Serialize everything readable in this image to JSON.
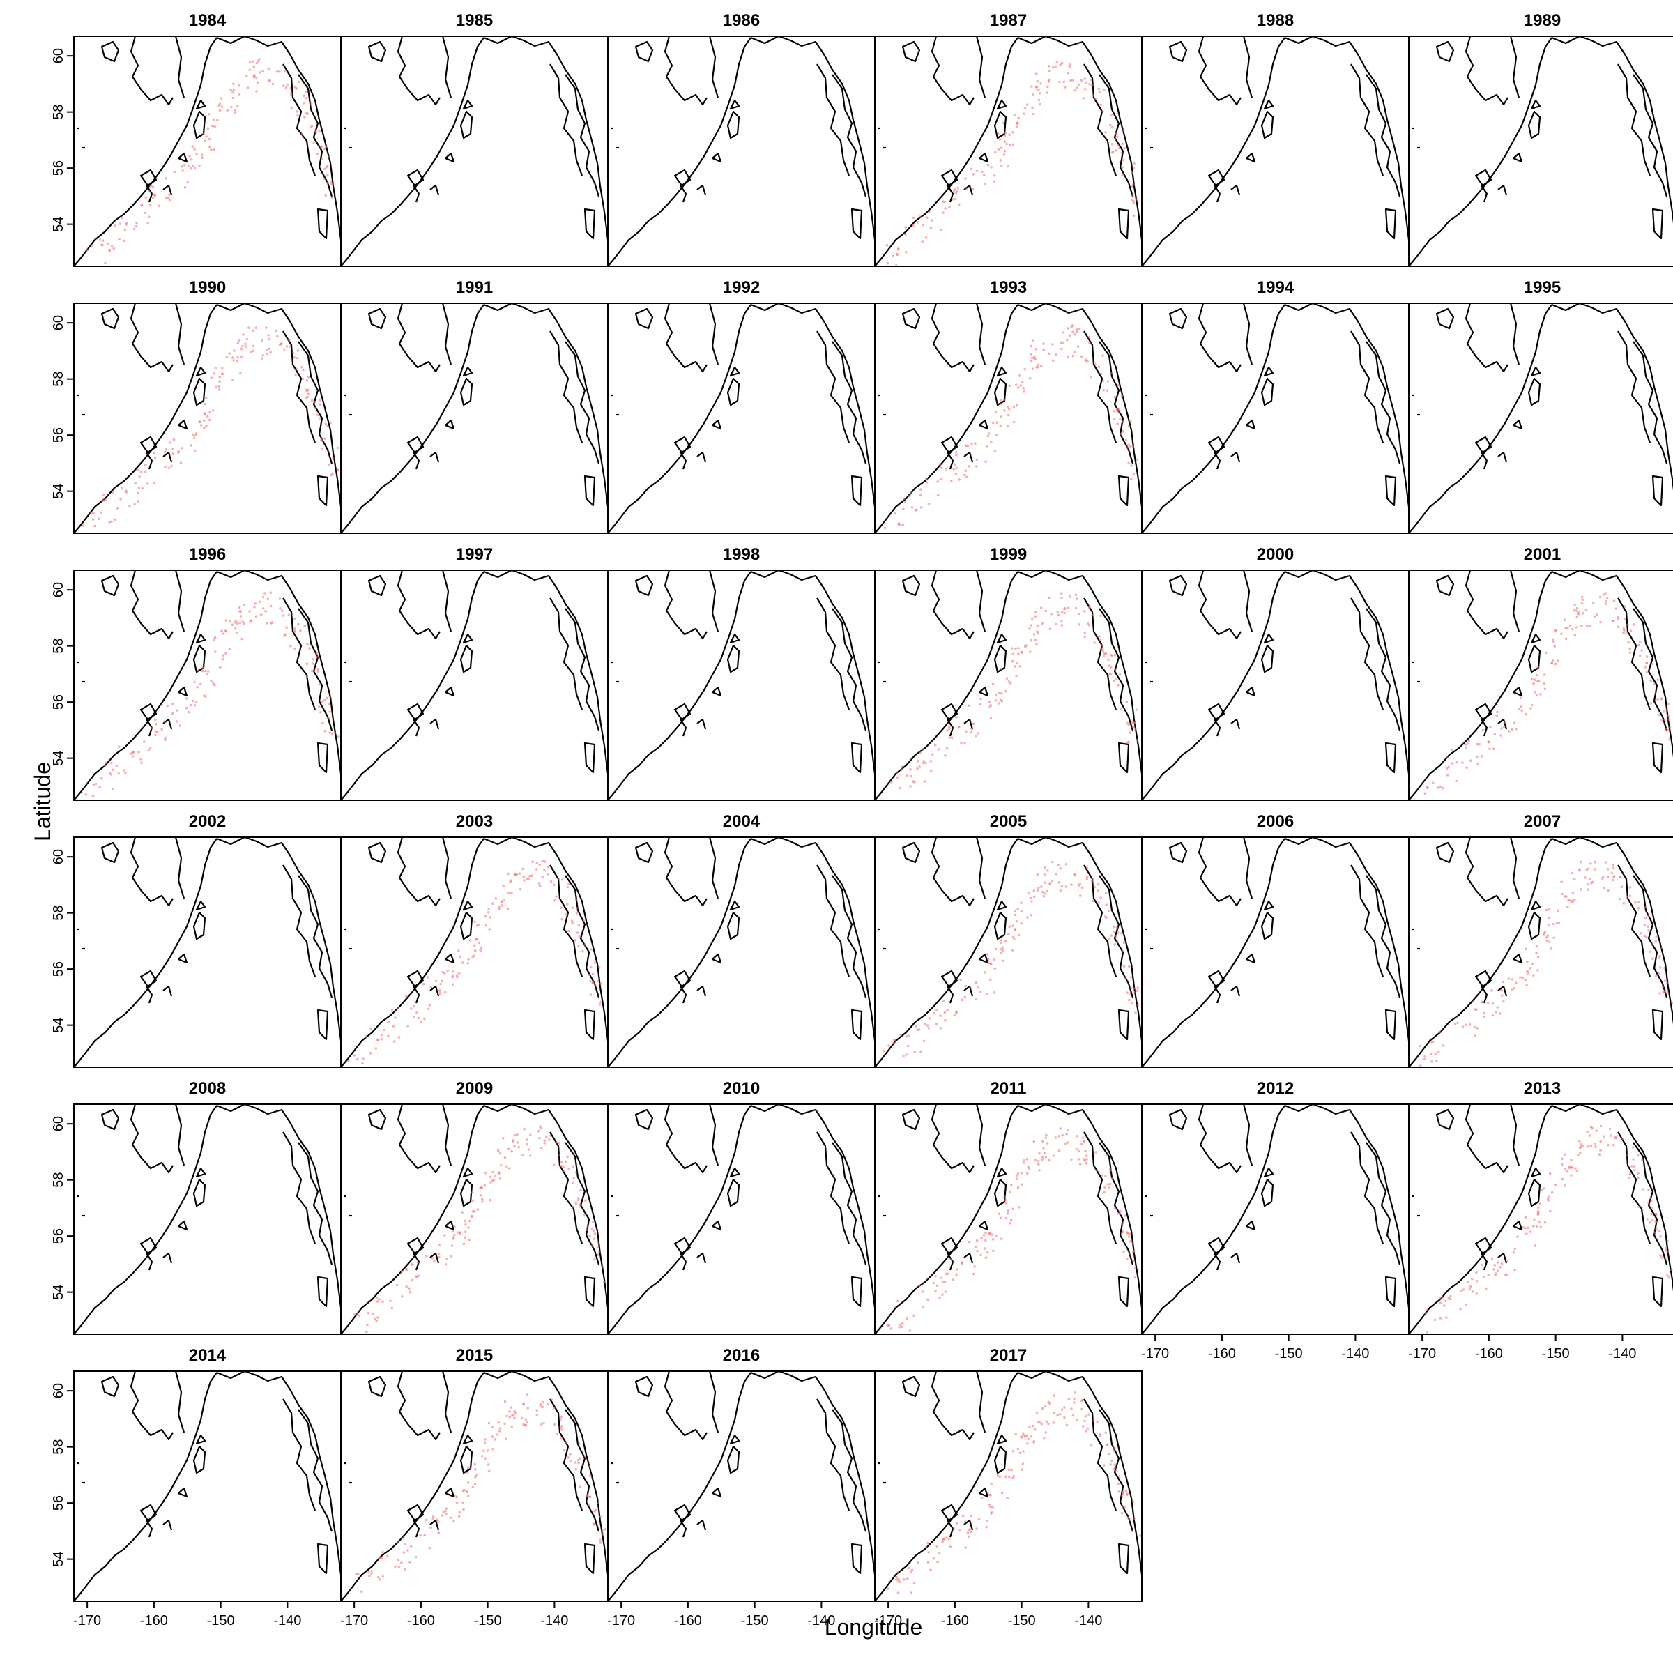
{
  "chart_data": {
    "type": "scatter",
    "title": "",
    "xlabel": "Longitude",
    "ylabel": "Latitude",
    "xlim": [
      -172,
      -132
    ],
    "ylim": [
      52.5,
      60.7
    ],
    "x_ticks": [
      -170,
      -160,
      -150,
      -140
    ],
    "x_tick_labels": [
      "-170",
      "-160",
      "-150",
      "-140"
    ],
    "y_ticks": [
      54,
      56,
      58,
      60
    ],
    "y_tick_labels": [
      "54",
      "56",
      "58",
      "60"
    ],
    "grid": false,
    "legend": "none",
    "colors": {
      "coastline": "#000000",
      "survey_points": "#f26d6d"
    },
    "panels": [
      {
        "year": "1984",
        "survey": true
      },
      {
        "year": "1985",
        "survey": false
      },
      {
        "year": "1986",
        "survey": false
      },
      {
        "year": "1987",
        "survey": true
      },
      {
        "year": "1988",
        "survey": false
      },
      {
        "year": "1989",
        "survey": false
      },
      {
        "year": "1990",
        "survey": true
      },
      {
        "year": "1991",
        "survey": false
      },
      {
        "year": "1992",
        "survey": false
      },
      {
        "year": "1993",
        "survey": true
      },
      {
        "year": "1994",
        "survey": false
      },
      {
        "year": "1995",
        "survey": false
      },
      {
        "year": "1996",
        "survey": true
      },
      {
        "year": "1997",
        "survey": false
      },
      {
        "year": "1998",
        "survey": false
      },
      {
        "year": "1999",
        "survey": true
      },
      {
        "year": "2000",
        "survey": false
      },
      {
        "year": "2001",
        "survey": true
      },
      {
        "year": "2002",
        "survey": false
      },
      {
        "year": "2003",
        "survey": true
      },
      {
        "year": "2004",
        "survey": false
      },
      {
        "year": "2005",
        "survey": true
      },
      {
        "year": "2006",
        "survey": false
      },
      {
        "year": "2007",
        "survey": true
      },
      {
        "year": "2008",
        "survey": false
      },
      {
        "year": "2009",
        "survey": true
      },
      {
        "year": "2010",
        "survey": false
      },
      {
        "year": "2011",
        "survey": true
      },
      {
        "year": "2012",
        "survey": false
      },
      {
        "year": "2013",
        "survey": true
      },
      {
        "year": "2014",
        "survey": false
      },
      {
        "year": "2015",
        "survey": true
      },
      {
        "year": "2016",
        "survey": false
      },
      {
        "year": "2017",
        "survey": true
      }
    ]
  }
}
